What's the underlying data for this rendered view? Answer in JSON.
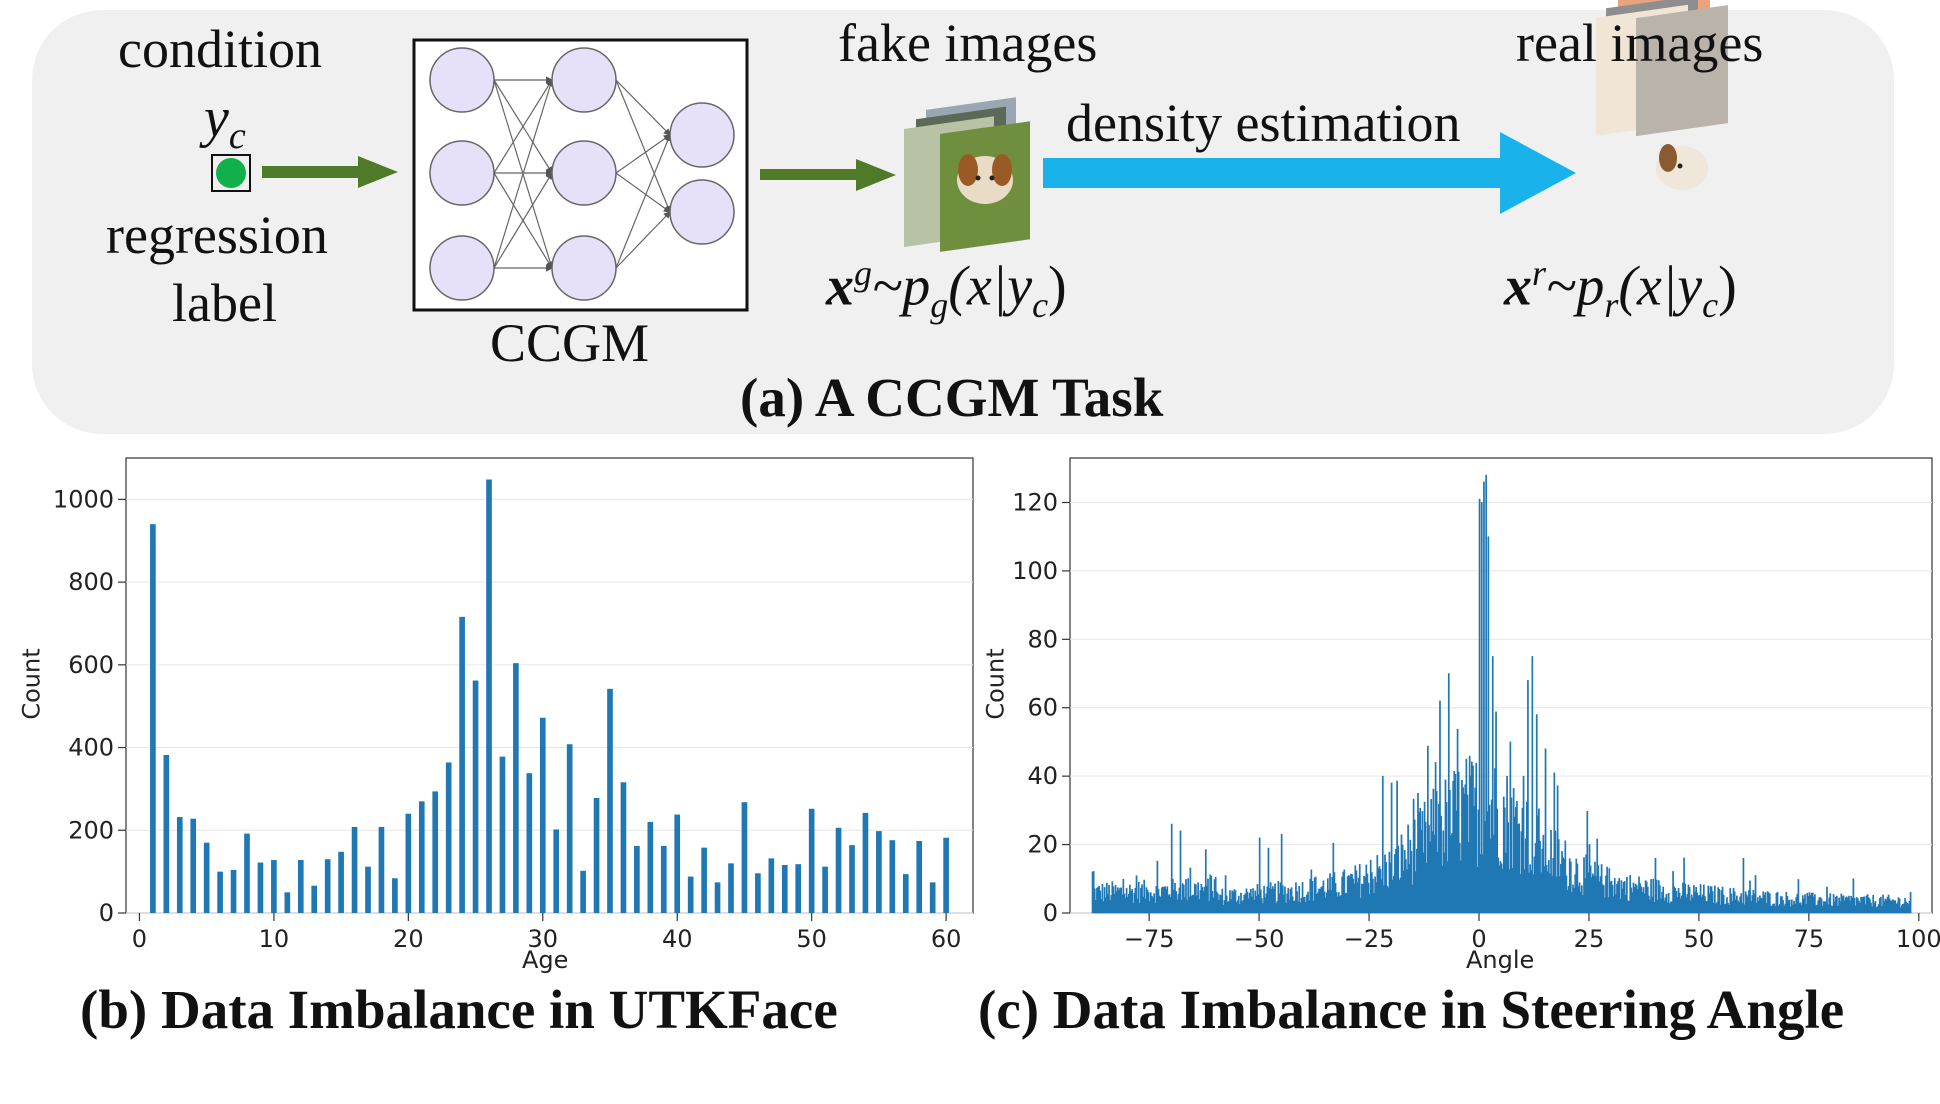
{
  "panel_a": {
    "condition": "condition",
    "condition_symbol": "y",
    "condition_sub": "c",
    "regression_line1": "regression",
    "regression_line2": "label",
    "model_label": "CCGM",
    "fake_images": "fake images",
    "density_estimation": "density estimation",
    "real_images": "real images",
    "fake_formula": {
      "x": "x",
      "sup": "g",
      "mid": "~p",
      "sub": "g",
      "tail": "(x|y",
      "tail_sub": "c",
      "close": ")"
    },
    "real_formula": {
      "x": "x",
      "sup": "r",
      "mid": "~p",
      "sub": "r",
      "tail": "(x|y",
      "tail_sub": "c",
      "close": ")"
    },
    "caption": "(a) A CCGM Task",
    "colors": {
      "green_arrow": "#4f7a28",
      "blue_arrow": "#19b2ea",
      "node_fill": "#e6e0f8",
      "green_dot": "#12b04a"
    }
  },
  "panel_b": {
    "caption": "(b) Data Imbalance in UTKFace",
    "chart_data": {
      "type": "bar",
      "xlabel": "Age",
      "ylabel": "Count",
      "xlim": [
        -1,
        62
      ],
      "ylim": [
        0,
        1100
      ],
      "xticks": [
        0,
        10,
        20,
        30,
        40,
        50,
        60
      ],
      "yticks": [
        0,
        200,
        400,
        600,
        800,
        1000
      ],
      "x": [
        1,
        2,
        3,
        4,
        5,
        6,
        7,
        8,
        9,
        10,
        11,
        12,
        13,
        14,
        15,
        16,
        17,
        18,
        19,
        20,
        21,
        22,
        23,
        24,
        25,
        26,
        27,
        28,
        29,
        30,
        31,
        32,
        33,
        34,
        35,
        36,
        37,
        38,
        39,
        40,
        41,
        42,
        43,
        44,
        45,
        46,
        47,
        48,
        49,
        50,
        51,
        52,
        53,
        54,
        55,
        56,
        57,
        58,
        59,
        60
      ],
      "values": [
        940,
        382,
        232,
        228,
        170,
        100,
        104,
        192,
        122,
        128,
        50,
        128,
        66,
        130,
        148,
        208,
        112,
        208,
        84,
        240,
        270,
        294,
        364,
        716,
        562,
        1048,
        378,
        604,
        338,
        472,
        202,
        408,
        102,
        278,
        542,
        316,
        162,
        220,
        162,
        238,
        88,
        158,
        74,
        120,
        268,
        96,
        132,
        116,
        118,
        252,
        112,
        206,
        164,
        242,
        198,
        176,
        94,
        174,
        74,
        182
      ],
      "color": "#1f77b4"
    }
  },
  "panel_c": {
    "caption": "(c) Data Imbalance in Steering Angle",
    "chart_data": {
      "type": "bar",
      "xlabel": "Angle",
      "ylabel": "Count",
      "xlim": [
        -93,
        103
      ],
      "ylim": [
        0,
        133
      ],
      "xticks": [
        -75,
        -50,
        -25,
        0,
        25,
        50,
        75,
        100
      ],
      "yticks": [
        0,
        20,
        40,
        60,
        80,
        100,
        120
      ],
      "x_range": [
        -88,
        98
      ],
      "peaks": [
        [
          -88,
          12
        ],
        [
          -70,
          26
        ],
        [
          -68,
          24
        ],
        [
          -50,
          22
        ],
        [
          -48,
          19
        ],
        [
          -45,
          23
        ],
        [
          -22,
          40
        ],
        [
          -20,
          38
        ],
        [
          -14,
          35
        ],
        [
          -10,
          44
        ],
        [
          -9,
          62
        ],
        [
          -7,
          70
        ],
        [
          -3,
          45
        ],
        [
          0,
          121
        ],
        [
          0.5,
          120
        ],
        [
          1,
          126
        ],
        [
          1.5,
          128
        ],
        [
          2,
          110
        ],
        [
          3,
          75
        ],
        [
          7,
          50
        ],
        [
          10,
          40
        ],
        [
          11,
          68
        ],
        [
          12,
          75
        ],
        [
          13,
          58
        ],
        [
          15,
          48
        ],
        [
          17,
          41
        ],
        [
          25,
          20
        ],
        [
          40,
          16
        ],
        [
          60,
          16
        ],
        [
          85,
          10
        ],
        [
          98,
          6
        ]
      ],
      "color": "#1f77b4"
    }
  }
}
